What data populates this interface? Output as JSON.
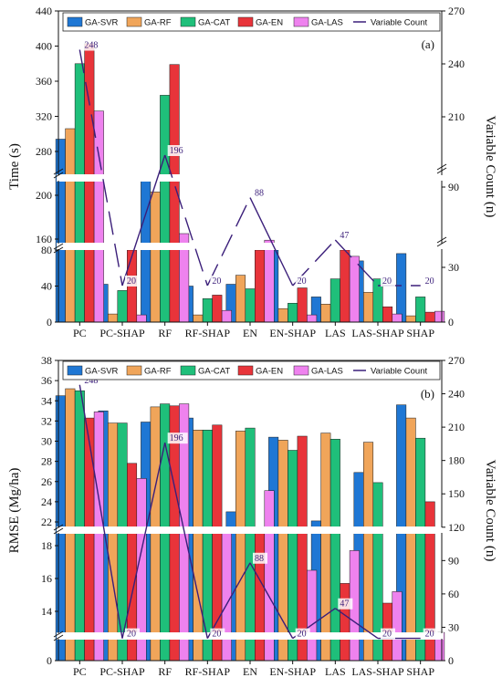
{
  "legend": [
    "GA-SVR",
    "GA-RF",
    "GA-CAT",
    "GA-EN",
    "GA-LAS",
    "Variable Count"
  ],
  "colors": {
    "GA-SVR": "#1f77d4",
    "GA-RF": "#f0a55a",
    "GA-CAT": "#1fbf7a",
    "GA-EN": "#e8343a",
    "GA-LAS": "#ee82ee",
    "Variable Count": "#3b1f7a"
  },
  "chart_data": [
    {
      "type": "bar",
      "panel_label": "(a)",
      "ylabel": "Time (s)",
      "y2label": "Variable Count (n)",
      "categories": [
        "PC",
        "PC-SHAP",
        "RF",
        "RF-SHAP",
        "EN",
        "EN-SHAP",
        "LAS",
        "LAS-SHAP",
        "SHAP"
      ],
      "series": [
        {
          "name": "GA-SVR",
          "values": [
            294,
            42,
            265,
            40,
            42,
            80,
            28,
            68,
            76
          ]
        },
        {
          "name": "GA-RF",
          "values": [
            306,
            9,
            203,
            8,
            52,
            15,
            20,
            33,
            7
          ]
        },
        {
          "name": "GA-CAT",
          "values": [
            380,
            35,
            344,
            26,
            37,
            21,
            48,
            48,
            28
          ]
        },
        {
          "name": "GA-EN",
          "values": [
            403,
            80,
            379,
            30,
            80,
            38,
            80,
            17,
            11
          ]
        },
        {
          "name": "GA-LAS",
          "values": [
            326,
            8,
            165,
            13,
            159,
            8,
            73,
            9,
            12
          ]
        }
      ],
      "variable_count": [
        248,
        20,
        196,
        20,
        88,
        20,
        47,
        20,
        20
      ],
      "y_ticks": [
        "0",
        "40",
        "80",
        "160",
        "200",
        "280",
        "320",
        "360",
        "400",
        "440"
      ],
      "y2_ticks": [
        "0",
        "30",
        "90",
        "210",
        "240",
        "270"
      ],
      "y_breaks": [
        [
          80,
          150
        ],
        [
          210,
          260
        ]
      ],
      "y2_breaks": [
        [
          45,
          80
        ],
        [
          100,
          190
        ]
      ]
    },
    {
      "type": "bar",
      "panel_label": "(b)",
      "ylabel": "RMSE (Mg/ha)",
      "y2label": "Variable Count (n)",
      "categories": [
        "PC",
        "PC-SHAP",
        "RF",
        "RF-SHAP",
        "EN",
        "EN-SHAP",
        "LAS",
        "LAS-SHAP",
        "SHAP"
      ],
      "series": [
        {
          "name": "GA-SVR",
          "values": [
            34.5,
            33.0,
            31.9,
            32.3,
            23.0,
            30.4,
            22.1,
            26.9,
            33.6
          ]
        },
        {
          "name": "GA-RF",
          "values": [
            35.2,
            31.8,
            33.4,
            31.1,
            31.0,
            30.1,
            30.8,
            29.9,
            32.3
          ]
        },
        {
          "name": "GA-CAT",
          "values": [
            35.0,
            31.8,
            33.7,
            31.1,
            31.3,
            29.1,
            30.2,
            25.9,
            30.3
          ]
        },
        {
          "name": "GA-EN",
          "values": [
            32.3,
            27.8,
            33.5,
            31.6,
            19.0,
            30.5,
            15.7,
            14.5,
            24.0
          ]
        },
        {
          "name": "GA-LAS",
          "values": [
            32.9,
            26.3,
            33.7,
            19.0,
            25.1,
            16.5,
            17.7,
            15.2,
            12.8
          ]
        }
      ],
      "variable_count": [
        248,
        20,
        196,
        20,
        88,
        20,
        47,
        20,
        20
      ],
      "y_ticks": [
        "0",
        "14",
        "16",
        "18",
        "22",
        "24",
        "26",
        "28",
        "30",
        "32",
        "34",
        "36",
        "38"
      ],
      "y2_ticks": [
        "0",
        "30",
        "60",
        "90",
        "120",
        "150",
        "180",
        "210",
        "240",
        "270"
      ],
      "y_breaks": [
        [
          0,
          12.6
        ],
        [
          19.6,
          21.8
        ]
      ]
    }
  ]
}
